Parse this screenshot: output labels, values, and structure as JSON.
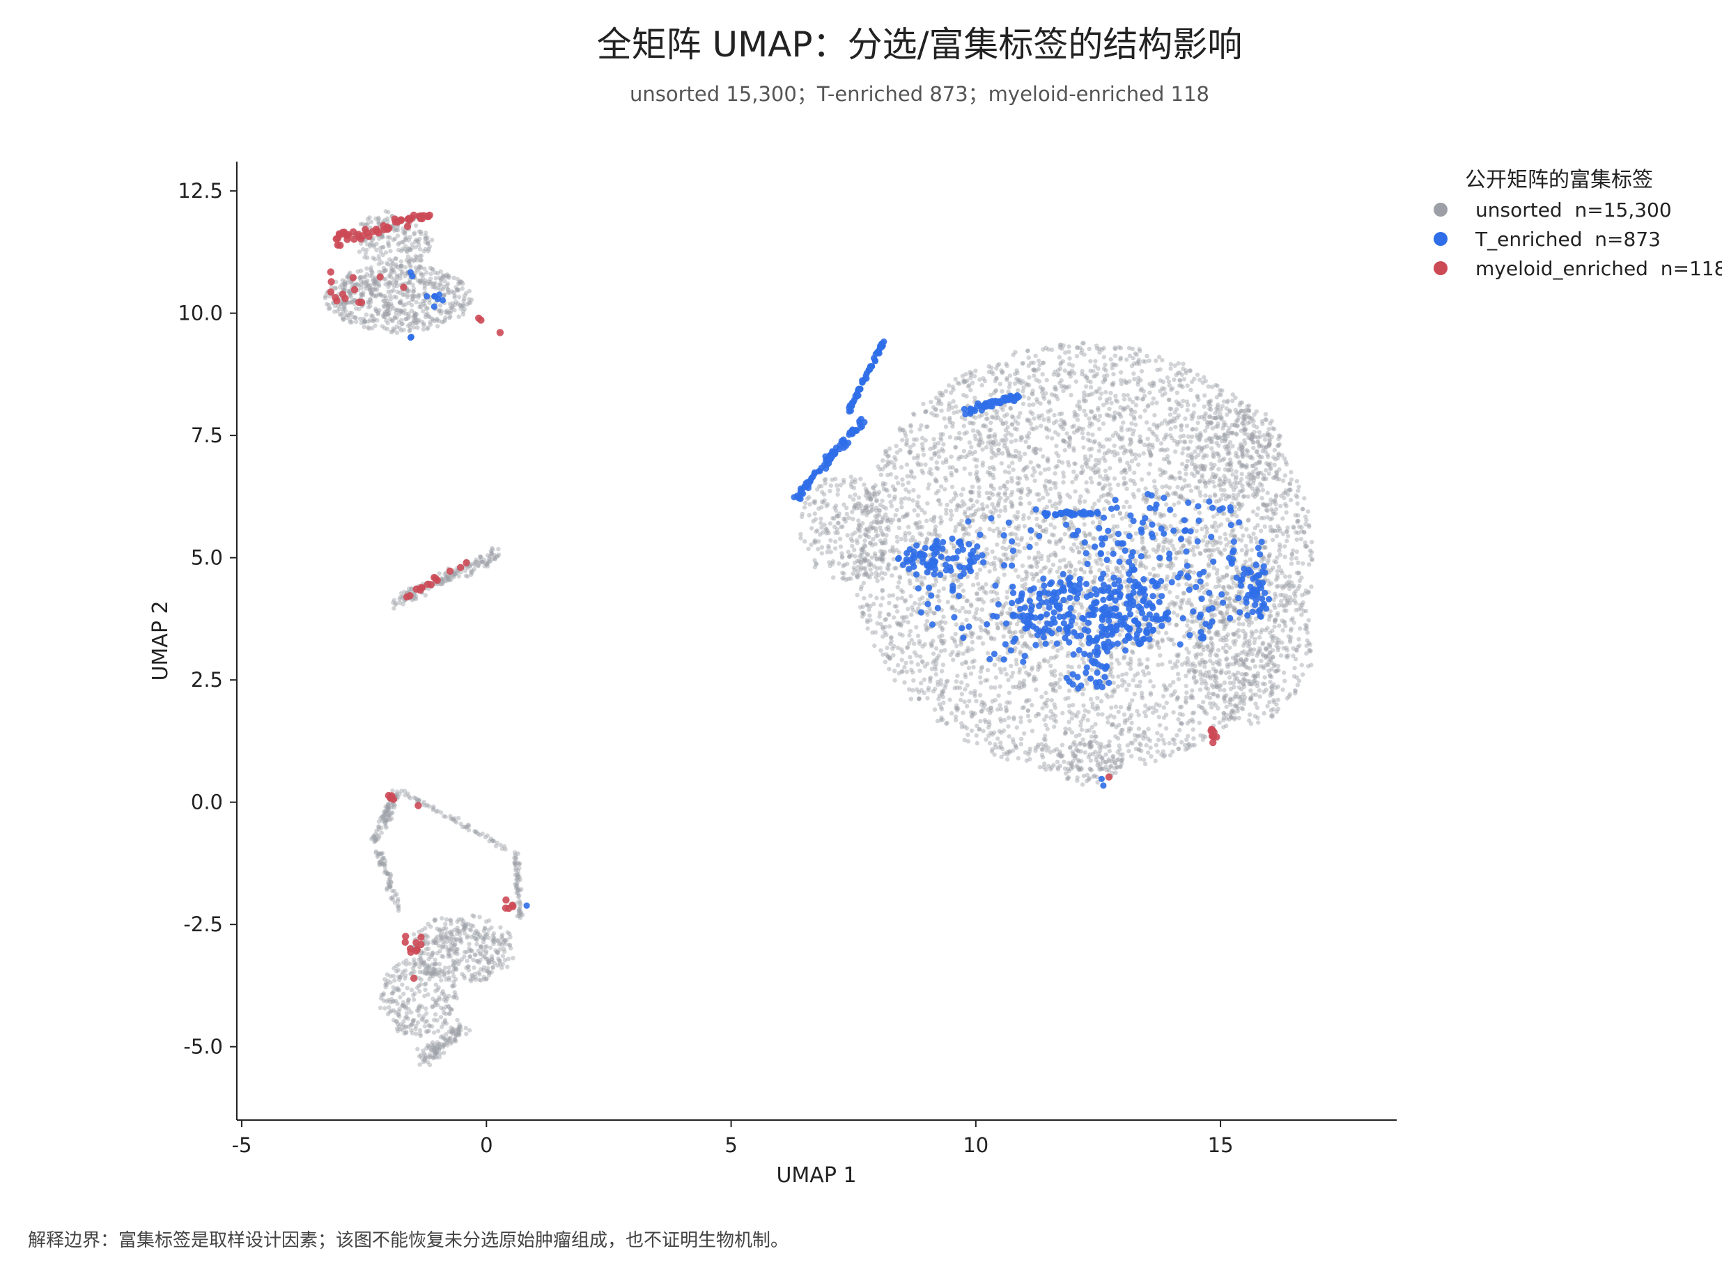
{
  "chart_data": {
    "type": "scatter",
    "title": "全矩阵 UMAP：分选/富集标签的结构影响",
    "subtitle": "unsorted 15,300；T-enriched 873；myeloid-enriched 118",
    "xlabel": "UMAP 1",
    "ylabel": "UMAP 2",
    "xlim": [
      -5.1,
      18.6
    ],
    "ylim": [
      -6.5,
      13.1
    ],
    "xticks": [
      -5,
      0,
      5,
      10,
      15
    ],
    "xtick_labels": [
      "-5",
      "0",
      "5",
      "10",
      "15"
    ],
    "yticks": [
      -5.0,
      -2.5,
      0.0,
      2.5,
      5.0,
      7.5,
      10.0,
      12.5
    ],
    "ytick_labels": [
      "-5.0",
      "-2.5",
      "0.0",
      "2.5",
      "5.0",
      "7.5",
      "10.0",
      "12.5"
    ],
    "grid": false,
    "legend": {
      "title": "公开矩阵的富集标签",
      "placement": "upper-right-outside",
      "entries": [
        "unsorted  n=15,300",
        "T_enriched  n=873",
        "myeloid_enriched  n=118"
      ]
    },
    "series": [
      {
        "name": "unsorted",
        "color": "#9ca0a6",
        "count": 15300,
        "regions": [
          {
            "shape": "ellipse",
            "cx": 12.2,
            "cy": 5.0,
            "rx": 4.7,
            "ry": 4.4,
            "n": 4400
          },
          {
            "shape": "ellipse",
            "cx": 15.6,
            "cy": 3.2,
            "rx": 1.3,
            "ry": 1.6,
            "n": 350
          },
          {
            "shape": "ellipse",
            "cx": 15.3,
            "cy": 7.2,
            "rx": 1.0,
            "ry": 1.0,
            "n": 250
          },
          {
            "shape": "ellipse",
            "cx": 12.3,
            "cy": 0.8,
            "rx": 0.7,
            "ry": 0.45,
            "n": 100
          },
          {
            "shape": "ellipse",
            "cx": 7.3,
            "cy": 5.6,
            "rx": 0.9,
            "ry": 1.1,
            "n": 250
          },
          {
            "shape": "ellipse",
            "cx": -1.8,
            "cy": 10.3,
            "rx": 1.5,
            "ry": 0.7,
            "n": 600
          },
          {
            "shape": "ellipse",
            "cx": -1.9,
            "cy": 11.5,
            "rx": 0.8,
            "ry": 0.6,
            "n": 200
          },
          {
            "shape": "segment",
            "x1": -1.9,
            "y1": 4.1,
            "x2": 0.3,
            "y2": 5.1,
            "w": 0.2,
            "n": 160
          },
          {
            "shape": "ellipse",
            "cx": -0.5,
            "cy": -3.0,
            "rx": 1.1,
            "ry": 0.7,
            "n": 350
          },
          {
            "shape": "ellipse",
            "cx": -1.4,
            "cy": -4.0,
            "rx": 0.8,
            "ry": 0.8,
            "n": 250
          },
          {
            "shape": "segment",
            "x1": -1.3,
            "y1": -5.3,
            "x2": -0.5,
            "y2": -4.6,
            "w": 0.25,
            "n": 110
          },
          {
            "shape": "segment",
            "x1": -2.3,
            "y1": -0.8,
            "x2": -1.8,
            "y2": 0.2,
            "w": 0.15,
            "n": 90
          },
          {
            "shape": "segment",
            "x1": -2.2,
            "y1": -1.0,
            "x2": -1.8,
            "y2": -2.2,
            "w": 0.12,
            "n": 60
          },
          {
            "shape": "segment",
            "x1": -1.7,
            "y1": 0.2,
            "x2": 0.5,
            "y2": -1.0,
            "w": 0.08,
            "n": 60
          },
          {
            "shape": "segment",
            "x1": 0.6,
            "y1": -1.0,
            "x2": 0.7,
            "y2": -2.4,
            "w": 0.1,
            "n": 60
          }
        ]
      },
      {
        "name": "T_enriched",
        "color": "#2f6ee8",
        "count": 873,
        "regions": [
          {
            "shape": "segment",
            "x1": 7.4,
            "y1": 8.0,
            "x2": 8.1,
            "y2": 9.4,
            "w": 0.06,
            "n": 55
          },
          {
            "shape": "segment",
            "x1": 6.3,
            "y1": 6.2,
            "x2": 7.7,
            "y2": 7.8,
            "w": 0.12,
            "n": 80
          },
          {
            "shape": "segment",
            "x1": 9.8,
            "y1": 8.0,
            "x2": 10.9,
            "y2": 8.3,
            "w": 0.1,
            "n": 50
          },
          {
            "shape": "segment",
            "x1": 11.4,
            "y1": 5.9,
            "x2": 12.5,
            "y2": 5.9,
            "w": 0.06,
            "n": 35
          },
          {
            "shape": "ellipse",
            "cx": 9.3,
            "cy": 5.0,
            "rx": 0.9,
            "ry": 0.4,
            "n": 70
          },
          {
            "shape": "ellipse",
            "cx": 12.3,
            "cy": 3.8,
            "rx": 1.6,
            "ry": 0.8,
            "n": 200
          },
          {
            "shape": "ellipse",
            "cx": 13.9,
            "cy": 4.8,
            "rx": 2.1,
            "ry": 1.6,
            "n": 170
          },
          {
            "shape": "ellipse",
            "cx": 11.0,
            "cy": 4.4,
            "rx": 2.5,
            "ry": 1.6,
            "n": 120
          },
          {
            "shape": "ellipse",
            "cx": 15.7,
            "cy": 4.3,
            "rx": 0.3,
            "ry": 0.6,
            "n": 35
          },
          {
            "shape": "ellipse",
            "cx": 12.3,
            "cy": 2.6,
            "rx": 0.5,
            "ry": 0.3,
            "n": 25
          },
          {
            "shape": "ellipse",
            "cx": -1.0,
            "cy": 10.3,
            "rx": 0.3,
            "ry": 0.2,
            "n": 7
          },
          {
            "shape": "ellipse",
            "cx": -1.6,
            "cy": 10.8,
            "rx": 0.1,
            "ry": 0.1,
            "n": 2
          },
          {
            "shape": "ellipse",
            "cx": -1.5,
            "cy": 9.5,
            "rx": 0.05,
            "ry": 0.05,
            "n": 2
          },
          {
            "shape": "ellipse",
            "cx": 12.6,
            "cy": 0.4,
            "rx": 0.05,
            "ry": 0.1,
            "n": 2
          },
          {
            "shape": "ellipse",
            "cx": 0.8,
            "cy": -2.1,
            "rx": 0.05,
            "ry": 0.05,
            "n": 1
          }
        ]
      },
      {
        "name": "myeloid_enriched",
        "color": "#cc4a56",
        "count": 118,
        "regions": [
          {
            "shape": "segment",
            "x1": -3.0,
            "y1": 11.5,
            "x2": -1.2,
            "y2": 12.0,
            "w": 0.2,
            "n": 50
          },
          {
            "shape": "ellipse",
            "cx": -2.4,
            "cy": 10.5,
            "rx": 0.8,
            "ry": 0.3,
            "n": 9
          },
          {
            "shape": "segment",
            "x1": -3.2,
            "y1": 11.0,
            "x2": -3.0,
            "y2": 9.8,
            "w": 0.05,
            "n": 4
          },
          {
            "shape": "segment",
            "x1": -0.2,
            "y1": 9.9,
            "x2": 0.3,
            "y2": 9.6,
            "w": 0.05,
            "n": 3
          },
          {
            "shape": "segment",
            "x1": -1.7,
            "y1": 4.2,
            "x2": -0.4,
            "y2": 4.9,
            "w": 0.1,
            "n": 14
          },
          {
            "shape": "ellipse",
            "cx": 14.85,
            "cy": 1.35,
            "rx": 0.1,
            "ry": 0.15,
            "n": 9
          },
          {
            "shape": "ellipse",
            "cx": 12.7,
            "cy": 0.5,
            "rx": 0.03,
            "ry": 0.03,
            "n": 1
          },
          {
            "shape": "ellipse",
            "cx": -1.95,
            "cy": 0.1,
            "rx": 0.08,
            "ry": 0.06,
            "n": 6
          },
          {
            "shape": "ellipse",
            "cx": -1.4,
            "cy": -0.05,
            "rx": 0.03,
            "ry": 0.03,
            "n": 1
          },
          {
            "shape": "ellipse",
            "cx": -1.5,
            "cy": -2.9,
            "rx": 0.25,
            "ry": 0.2,
            "n": 10
          },
          {
            "shape": "ellipse",
            "cx": 0.4,
            "cy": -2.15,
            "rx": 0.15,
            "ry": 0.15,
            "n": 5
          },
          {
            "shape": "ellipse",
            "cx": -1.5,
            "cy": -3.6,
            "rx": 0.05,
            "ry": 0.05,
            "n": 1
          }
        ]
      }
    ]
  },
  "footnote": "解释边界：富集标签是取样设计因素；该图不能恢复未分选原始肿瘤组成，也不证明生物机制。"
}
